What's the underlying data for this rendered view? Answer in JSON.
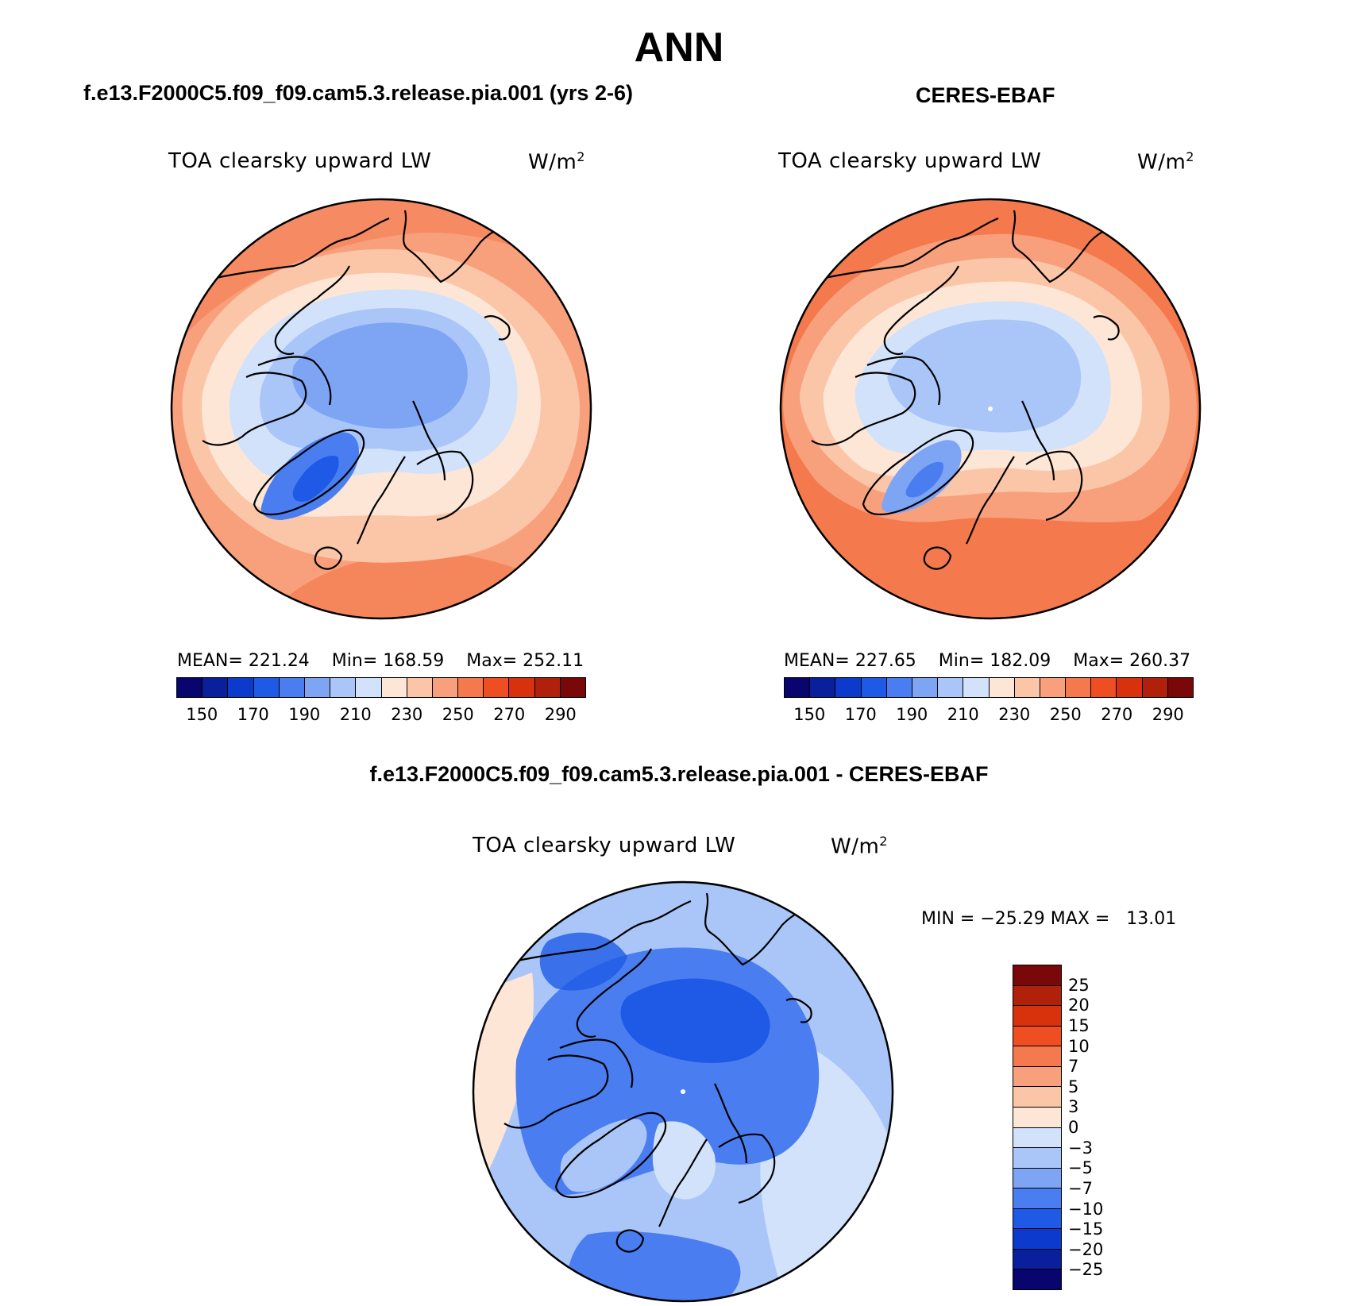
{
  "figure": {
    "title": "ANN"
  },
  "panels": [
    {
      "id": "model",
      "case_title": "f.e13.F2000C5.f09_f09.cam5.3.release.pia.001 (yrs 2-6)",
      "variable": "TOA clearsky upward LW",
      "units": "W/m",
      "units_exponent": "2",
      "stats": {
        "mean_label": "MEAN=",
        "mean": "221.24",
        "min_label": "Min=",
        "min": "168.59",
        "max_label": "Max=",
        "max": "252.11"
      },
      "colorbar_ticks": [
        "150",
        "170",
        "190",
        "210",
        "230",
        "250",
        "270",
        "290"
      ]
    },
    {
      "id": "obs",
      "case_title": "CERES-EBAF",
      "variable": "TOA clearsky upward LW",
      "units": "W/m",
      "units_exponent": "2",
      "stats": {
        "mean_label": "MEAN=",
        "mean": "227.65",
        "min_label": "Min=",
        "min": "182.09",
        "max_label": "Max=",
        "max": "260.37"
      },
      "colorbar_ticks": [
        "150",
        "170",
        "190",
        "210",
        "230",
        "250",
        "270",
        "290"
      ]
    },
    {
      "id": "diff",
      "case_title": "f.e13.F2000C5.f09_f09.cam5.3.release.pia.001 - CERES-EBAF",
      "variable": "TOA clearsky upward LW",
      "units": "W/m",
      "units_exponent": "2",
      "stats": {
        "min_label": "MIN =",
        "min": "−25.29",
        "max_label": "MAX =",
        "max": "13.01"
      },
      "colorbar_ticks": [
        "25",
        "20",
        "15",
        "10",
        "7",
        "5",
        "3",
        "0",
        "−3",
        "−5",
        "−7",
        "−10",
        "−15",
        "−20",
        "−25"
      ]
    }
  ],
  "colors": {
    "abs_scale": [
      "#08066e",
      "#0a1f9c",
      "#0c3acc",
      "#1e5ae6",
      "#4a7ef0",
      "#7ea4f4",
      "#aac6f8",
      "#d2e2fa",
      "#fde6d6",
      "#fbc6a8",
      "#f8a07c",
      "#f47a4e",
      "#ef4e22",
      "#d8320c",
      "#b0200a",
      "#7a0808"
    ],
    "diff_scale": [
      "#7a0808",
      "#b0200a",
      "#d8320c",
      "#ef4e22",
      "#f47a4e",
      "#f8a07c",
      "#fbc6a8",
      "#fde6d6",
      "#d2e2fa",
      "#aac6f8",
      "#7ea4f4",
      "#4a7ef0",
      "#1e5ae6",
      "#0c3acc",
      "#0a1f9c",
      "#08066e"
    ]
  }
}
